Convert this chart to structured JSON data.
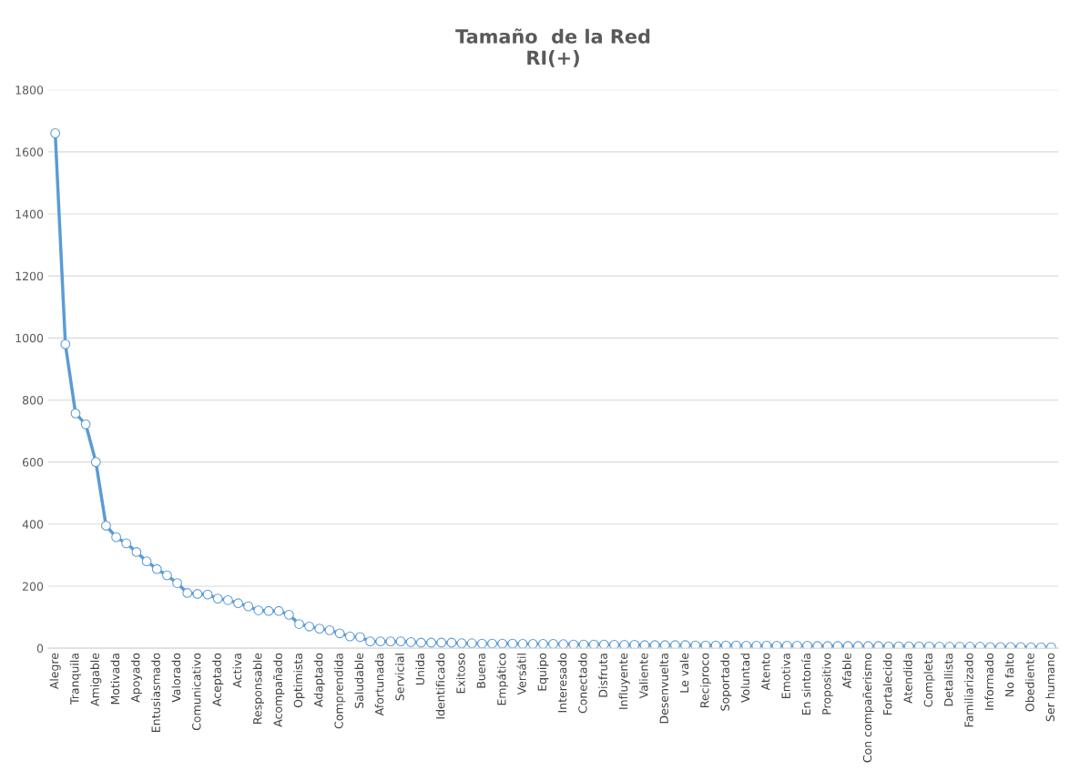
{
  "chart_data": {
    "type": "line",
    "title": "Tamaño  de la Red\nRI(+)",
    "categories": [
      "Alegre",
      null,
      "Tranquila",
      null,
      "Amigable",
      null,
      "Motivada",
      null,
      "Apoyado",
      null,
      "Entusiasmado",
      null,
      "Valorado",
      null,
      "Comunicativo",
      null,
      "Aceptado",
      null,
      "Activa",
      null,
      "Responsable",
      null,
      "Acompañado",
      null,
      "Optimista",
      null,
      "Adaptado",
      null,
      "Comprendida",
      null,
      "Saludable",
      null,
      "Afortunada",
      null,
      "Servicial",
      null,
      "Unida",
      null,
      "Identificado",
      null,
      "Exitoso",
      null,
      "Buena",
      null,
      "Empático",
      null,
      "Versátil",
      null,
      "Equipo",
      null,
      "Interesado",
      null,
      "Conectado",
      null,
      "Disfruta",
      null,
      "Influyente",
      null,
      "Valiente",
      null,
      "Desenvuelta",
      null,
      "Le vale",
      null,
      "Reciproco",
      null,
      "Soportado",
      null,
      "Voluntad",
      null,
      "Atento",
      null,
      "Emotiva",
      null,
      "En sintonía",
      null,
      "Propositivo",
      null,
      "Afable",
      null,
      "Con compañerismo",
      null,
      "Fortalecido",
      null,
      "Atendida",
      null,
      "Completa",
      null,
      "Detallista",
      null,
      "Familiarizado",
      null,
      "Informado",
      null,
      "No falto",
      null,
      "Obediente",
      null,
      "Ser humano"
    ],
    "series": [
      {
        "color": "#5b9bd5",
        "values": [
          1660,
          980,
          757,
          722,
          600,
          395,
          358,
          338,
          310,
          280,
          255,
          235,
          210,
          178,
          175,
          173,
          160,
          155,
          145,
          135,
          122,
          120,
          120,
          108,
          78,
          70,
          63,
          58,
          48,
          38,
          36,
          22,
          22,
          22,
          22,
          20,
          18,
          18,
          18,
          18,
          16,
          16,
          15,
          15,
          15,
          15,
          14,
          14,
          14,
          14,
          13,
          12,
          12,
          12,
          12,
          11,
          11,
          11,
          10,
          10,
          10,
          10,
          10,
          9,
          9,
          9,
          9,
          9,
          8,
          8,
          8,
          8,
          8,
          8,
          8,
          7,
          7,
          7,
          7,
          7,
          7,
          7,
          6,
          6,
          6,
          6,
          6,
          5,
          5,
          5,
          5,
          5,
          4,
          4,
          4,
          4,
          3,
          3,
          3
        ]
      }
    ],
    "ylim": [
      0,
      1800
    ],
    "yticks": [
      0,
      200,
      400,
      600,
      800,
      1000,
      1200,
      1400,
      1600,
      1800
    ],
    "grid": "y",
    "marker": "circle",
    "line_style": "solid"
  }
}
